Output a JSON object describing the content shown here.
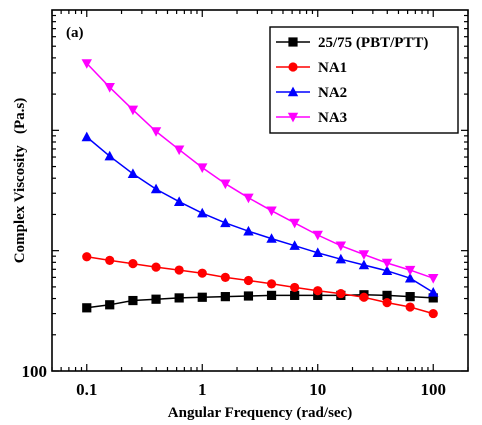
{
  "chart_data": {
    "type": "line",
    "panel_label": "(a)",
    "xlabel": "Angular Frequency (rad/sec)",
    "ylabel": "Complex Viscosity   (Pa.s)",
    "xscale": "log",
    "yscale": "log",
    "xlim": [
      0.05,
      200
    ],
    "ylim": [
      100,
      100000
    ],
    "x_ticks": [
      0.1,
      1,
      10,
      100
    ],
    "x_tick_labels": [
      "0.1",
      "1",
      "10",
      "100"
    ],
    "y_ticks": [
      100,
      1000,
      10000,
      100000
    ],
    "y_tick_labels": [
      "100",
      "",
      "",
      ""
    ],
    "legend_position": "top-right",
    "x": [
      0.1,
      0.158,
      0.251,
      0.398,
      0.631,
      1,
      1.585,
      2.512,
      3.981,
      6.31,
      10,
      15.85,
      25.12,
      39.81,
      63.1,
      100
    ],
    "series": [
      {
        "name": "25/75 (PBT/PTT)",
        "color": "#000000",
        "marker": "square",
        "values": [
          335,
          355,
          385,
          395,
          405,
          410,
          415,
          420,
          425,
          425,
          425,
          425,
          430,
          425,
          415,
          405
        ]
      },
      {
        "name": "NA1",
        "color": "#ff0000",
        "marker": "circle",
        "values": [
          890,
          830,
          780,
          730,
          690,
          650,
          600,
          565,
          530,
          495,
          465,
          440,
          410,
          370,
          340,
          300
        ]
      },
      {
        "name": "NA2",
        "color": "#0000ff",
        "marker": "triangle-up",
        "values": [
          8800,
          6100,
          4350,
          3250,
          2550,
          2050,
          1700,
          1450,
          1260,
          1100,
          960,
          850,
          760,
          680,
          590,
          450
        ]
      },
      {
        "name": "NA3",
        "color": "#ff00ff",
        "marker": "triangle-down",
        "values": [
          36000,
          22800,
          14800,
          9800,
          6900,
          4900,
          3600,
          2750,
          2150,
          1700,
          1350,
          1100,
          930,
          790,
          690,
          590
        ]
      }
    ]
  }
}
